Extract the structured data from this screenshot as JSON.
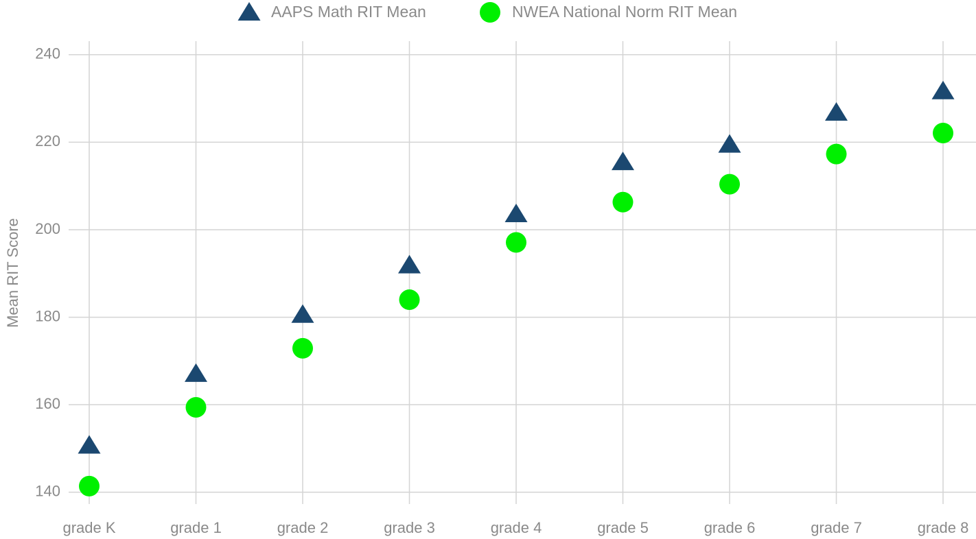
{
  "chart_data": {
    "type": "scatter",
    "y_label": "Mean RIT Score",
    "categories": [
      "grade K",
      "grade 1",
      "grade 2",
      "grade 3",
      "grade 4",
      "grade 5",
      "grade 6",
      "grade 7",
      "grade 8"
    ],
    "series": [
      {
        "name": "AAPS Math RIT Mean",
        "color": "#1b4870",
        "marker": "triangle",
        "values": [
          150.7,
          167.1,
          180.6,
          191.9,
          203.6,
          215.5,
          219.5,
          226.8,
          231.7
        ]
      },
      {
        "name": "NWEA National Norm RIT Mean",
        "color": "#00f000",
        "marker": "circle",
        "values": [
          141.4,
          159.4,
          172.9,
          184.0,
          197.1,
          206.3,
          210.4,
          217.3,
          222.1
        ]
      }
    ],
    "ylim": [
      137.3,
      243.1
    ],
    "yticks": [
      140,
      160,
      180,
      200,
      220,
      240
    ],
    "grid": true,
    "legend": "top"
  }
}
